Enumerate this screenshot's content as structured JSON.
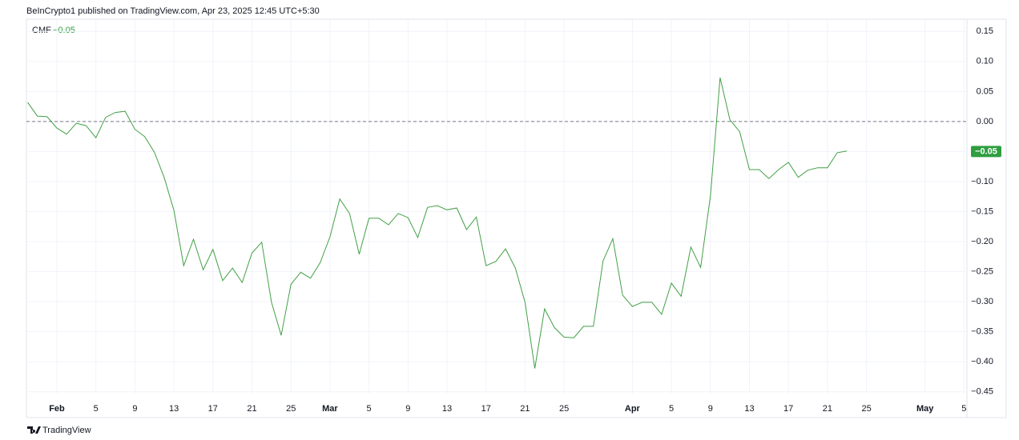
{
  "header": {
    "text": "BeInCrypto1 published on TradingView.com, Apr 23, 2025 12:45 UTC+5:30"
  },
  "footer": {
    "brand": "TradingView"
  },
  "chart_data": {
    "type": "line",
    "indicator": "CMF",
    "current_value": -0.05,
    "current_value_label": "−0.05",
    "baseline": 0,
    "grid": true,
    "series": [
      {
        "name": "CMF",
        "color": "#43a047",
        "values": [
          0.032,
          0.009,
          0.008,
          -0.011,
          -0.021,
          -0.003,
          -0.007,
          -0.027,
          0.007,
          0.015,
          0.017,
          -0.013,
          -0.025,
          -0.051,
          -0.093,
          -0.148,
          -0.24,
          -0.196,
          -0.247,
          -0.213,
          -0.265,
          -0.244,
          -0.268,
          -0.219,
          -0.201,
          -0.301,
          -0.356,
          -0.271,
          -0.251,
          -0.261,
          -0.235,
          -0.192,
          -0.129,
          -0.153,
          -0.221,
          -0.161,
          -0.161,
          -0.172,
          -0.153,
          -0.16,
          -0.193,
          -0.143,
          -0.14,
          -0.147,
          -0.144,
          -0.18,
          -0.159,
          -0.24,
          -0.233,
          -0.212,
          -0.244,
          -0.301,
          -0.411,
          -0.312,
          -0.343,
          -0.359,
          -0.36,
          -0.341,
          -0.341,
          -0.232,
          -0.195,
          -0.289,
          -0.308,
          -0.301,
          -0.301,
          -0.321,
          -0.269,
          -0.291,
          -0.209,
          -0.243,
          -0.124,
          0.073,
          0.003,
          -0.017,
          -0.08,
          -0.08,
          -0.095,
          -0.08,
          -0.068,
          -0.093,
          -0.081,
          -0.077,
          -0.077,
          -0.052,
          -0.049
        ]
      }
    ],
    "xlim": [
      -0.12,
      96.3
    ],
    "xticks": [
      {
        "value": 3,
        "label": "Feb"
      },
      {
        "value": 7,
        "label": "5"
      },
      {
        "value": 11,
        "label": "9"
      },
      {
        "value": 15,
        "label": "13"
      },
      {
        "value": 19,
        "label": "17"
      },
      {
        "value": 23,
        "label": "21"
      },
      {
        "value": 27,
        "label": "25"
      },
      {
        "value": 31,
        "label": "Mar"
      },
      {
        "value": 35,
        "label": "5"
      },
      {
        "value": 39,
        "label": "9"
      },
      {
        "value": 43,
        "label": "13"
      },
      {
        "value": 47,
        "label": "17"
      },
      {
        "value": 51,
        "label": "21"
      },
      {
        "value": 55,
        "label": "25"
      },
      {
        "value": 62,
        "label": "Apr"
      },
      {
        "value": 66,
        "label": "5"
      },
      {
        "value": 70,
        "label": "9"
      },
      {
        "value": 74,
        "label": "13"
      },
      {
        "value": 78,
        "label": "17"
      },
      {
        "value": 82,
        "label": "21"
      },
      {
        "value": 86,
        "label": "25"
      },
      {
        "value": 92,
        "label": "May"
      },
      {
        "value": 96,
        "label": "5"
      }
    ],
    "ylim": [
      -0.453,
      0.169
    ],
    "yticks": [
      {
        "value": 0.15,
        "label": "0.15"
      },
      {
        "value": 0.1,
        "label": "0.10"
      },
      {
        "value": 0.05,
        "label": "0.05"
      },
      {
        "value": 0,
        "label": "0.00"
      },
      {
        "value": -0.05,
        "label": "−0.05"
      },
      {
        "value": -0.1,
        "label": "−0.10"
      },
      {
        "value": -0.15,
        "label": "−0.15"
      },
      {
        "value": -0.2,
        "label": "−0.20"
      },
      {
        "value": -0.25,
        "label": "−0.25"
      },
      {
        "value": -0.3,
        "label": "−0.30"
      },
      {
        "value": -0.35,
        "label": "−0.35"
      },
      {
        "value": -0.4,
        "label": "−0.40"
      },
      {
        "value": -0.45,
        "label": "−0.45"
      }
    ]
  }
}
